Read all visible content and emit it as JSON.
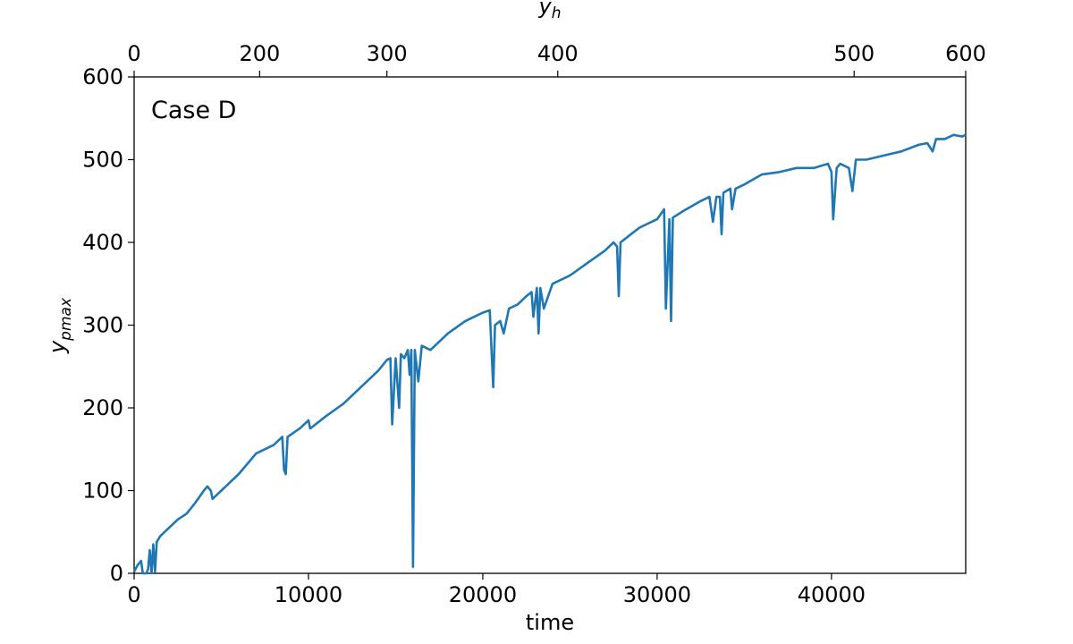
{
  "chart_data": {
    "type": "line",
    "annotation": "Case D",
    "xlabel": "time",
    "ylabel_main": "y",
    "ylabel_sub": "pmax",
    "top_xlabel_main": "y",
    "top_xlabel_sub": "h",
    "xlim": [
      0,
      47700
    ],
    "ylim": [
      0,
      600
    ],
    "grid": false,
    "x_ticks": [
      {
        "value": 0,
        "label": "0"
      },
      {
        "value": 10000,
        "label": "10000"
      },
      {
        "value": 20000,
        "label": "20000"
      },
      {
        "value": 30000,
        "label": "30000"
      },
      {
        "value": 40000,
        "label": "40000"
      }
    ],
    "y_ticks": [
      {
        "value": 0,
        "label": "0"
      },
      {
        "value": 100,
        "label": "100"
      },
      {
        "value": 200,
        "label": "200"
      },
      {
        "value": 300,
        "label": "300"
      },
      {
        "value": 400,
        "label": "400"
      },
      {
        "value": 500,
        "label": "500"
      },
      {
        "value": 600,
        "label": "600"
      }
    ],
    "top_ticks": [
      {
        "value": 0,
        "label": "0"
      },
      {
        "value": 200,
        "label": "200"
      },
      {
        "value": 300,
        "label": "300"
      },
      {
        "value": 400,
        "label": "400"
      },
      {
        "value": 500,
        "label": "500"
      },
      {
        "value": 600,
        "label": "600"
      }
    ],
    "top_axis_mapping": {
      "yh_values": [
        0,
        200,
        300,
        400,
        500,
        600
      ],
      "time_values": [
        0,
        7200,
        14500,
        24300,
        41300,
        47700
      ]
    },
    "series": [
      {
        "color": "#1f77b4",
        "points": [
          [
            0,
            2
          ],
          [
            200,
            10
          ],
          [
            400,
            15
          ],
          [
            500,
            0
          ],
          [
            700,
            0
          ],
          [
            800,
            5
          ],
          [
            900,
            28
          ],
          [
            1000,
            0
          ],
          [
            1100,
            35
          ],
          [
            1200,
            2
          ],
          [
            1300,
            38
          ],
          [
            1500,
            45
          ],
          [
            2000,
            55
          ],
          [
            2500,
            65
          ],
          [
            3000,
            72
          ],
          [
            3500,
            85
          ],
          [
            4000,
            100
          ],
          [
            4200,
            105
          ],
          [
            4400,
            100
          ],
          [
            4500,
            90
          ],
          [
            5000,
            100
          ],
          [
            6000,
            120
          ],
          [
            7000,
            145
          ],
          [
            8000,
            155
          ],
          [
            8500,
            165
          ],
          [
            8600,
            125
          ],
          [
            8700,
            120
          ],
          [
            8800,
            165
          ],
          [
            9500,
            175
          ],
          [
            10000,
            185
          ],
          [
            10100,
            175
          ],
          [
            11000,
            190
          ],
          [
            12000,
            205
          ],
          [
            13000,
            225
          ],
          [
            14000,
            245
          ],
          [
            14500,
            258
          ],
          [
            14700,
            260
          ],
          [
            14800,
            180
          ],
          [
            15000,
            260
          ],
          [
            15200,
            200
          ],
          [
            15300,
            265
          ],
          [
            15500,
            260
          ],
          [
            15700,
            270
          ],
          [
            15800,
            240
          ],
          [
            15900,
            270
          ],
          [
            16000,
            8
          ],
          [
            16100,
            270
          ],
          [
            16300,
            232
          ],
          [
            16500,
            275
          ],
          [
            17000,
            270
          ],
          [
            18000,
            290
          ],
          [
            19000,
            305
          ],
          [
            20000,
            315
          ],
          [
            20400,
            318
          ],
          [
            20500,
            270
          ],
          [
            20600,
            225
          ],
          [
            20700,
            300
          ],
          [
            21000,
            305
          ],
          [
            21200,
            290
          ],
          [
            21500,
            320
          ],
          [
            22000,
            325
          ],
          [
            22500,
            335
          ],
          [
            22800,
            340
          ],
          [
            22900,
            310
          ],
          [
            23100,
            345
          ],
          [
            23200,
            290
          ],
          [
            23300,
            345
          ],
          [
            23500,
            320
          ],
          [
            24000,
            350
          ],
          [
            25000,
            360
          ],
          [
            26000,
            375
          ],
          [
            27000,
            390
          ],
          [
            27500,
            400
          ],
          [
            27700,
            395
          ],
          [
            27800,
            335
          ],
          [
            27900,
            400
          ],
          [
            28500,
            410
          ],
          [
            29000,
            418
          ],
          [
            30000,
            428
          ],
          [
            30400,
            440
          ],
          [
            30500,
            320
          ],
          [
            30700,
            428
          ],
          [
            30800,
            305
          ],
          [
            30900,
            430
          ],
          [
            31500,
            438
          ],
          [
            32500,
            450
          ],
          [
            33000,
            455
          ],
          [
            33200,
            425
          ],
          [
            33400,
            455
          ],
          [
            33600,
            455
          ],
          [
            33700,
            410
          ],
          [
            33800,
            460
          ],
          [
            34200,
            465
          ],
          [
            34300,
            440
          ],
          [
            34500,
            465
          ],
          [
            35000,
            470
          ],
          [
            36000,
            482
          ],
          [
            37000,
            485
          ],
          [
            38000,
            490
          ],
          [
            39000,
            490
          ],
          [
            39800,
            495
          ],
          [
            40000,
            485
          ],
          [
            40100,
            428
          ],
          [
            40300,
            490
          ],
          [
            40500,
            495
          ],
          [
            41000,
            490
          ],
          [
            41200,
            462
          ],
          [
            41400,
            500
          ],
          [
            42000,
            500
          ],
          [
            43000,
            505
          ],
          [
            44000,
            510
          ],
          [
            45000,
            518
          ],
          [
            45500,
            520
          ],
          [
            45800,
            510
          ],
          [
            46000,
            525
          ],
          [
            46500,
            525
          ],
          [
            47000,
            530
          ],
          [
            47500,
            528
          ],
          [
            47700,
            530
          ]
        ]
      }
    ]
  }
}
